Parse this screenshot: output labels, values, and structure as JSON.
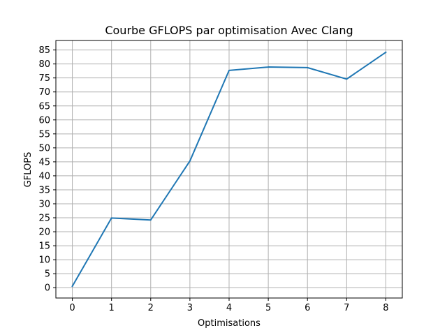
{
  "chart_data": {
    "type": "line",
    "title": "Courbe GFLOPS par optimisation Avec Clang",
    "xlabel": "Optimisations",
    "ylabel": "GFLOPS",
    "x": [
      0,
      1,
      2,
      3,
      4,
      5,
      6,
      7,
      8
    ],
    "series": [
      {
        "name": "GFLOPS",
        "color": "#1f77b4",
        "values": [
          0.5,
          24.9,
          24.2,
          45.3,
          77.7,
          78.9,
          78.7,
          74.6,
          84.2
        ]
      }
    ],
    "xticks": [
      "0",
      "1",
      "2",
      "3",
      "4",
      "5",
      "6",
      "7",
      "8"
    ],
    "yticks": [
      "0",
      "5",
      "10",
      "15",
      "20",
      "25",
      "30",
      "35",
      "40",
      "45",
      "50",
      "55",
      "60",
      "65",
      "70",
      "75",
      "80",
      "85"
    ],
    "xlim": [
      -0.42,
      8.42
    ],
    "ylim": [
      -3.7,
      88.4
    ],
    "grid": true
  }
}
